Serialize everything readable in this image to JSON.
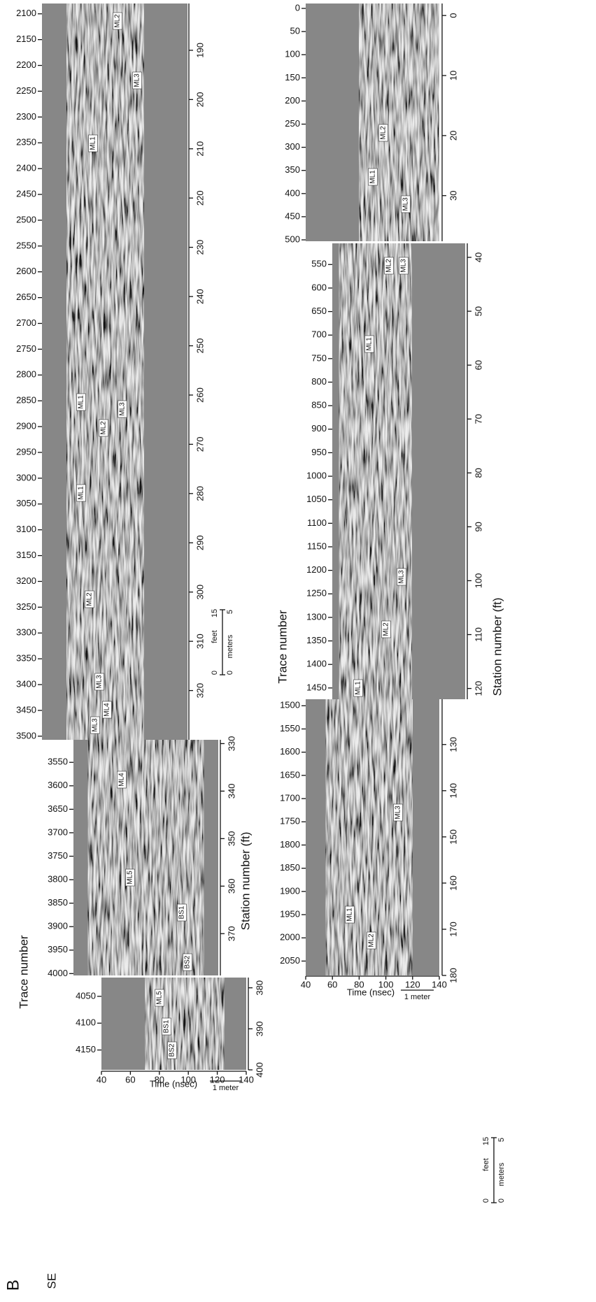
{
  "chart_data": [
    {
      "type": "radargram",
      "panel_label": "B",
      "direction": "SE",
      "ylabel": "Trace number",
      "y2label": "Station number (ft)",
      "xlabel": "Time (nsec)",
      "xlim": [
        40,
        140
      ],
      "xticks": [
        40,
        60,
        80,
        100,
        120,
        140
      ],
      "panels": [
        {
          "ylim": [
            2080,
            3507
          ],
          "yticks": [
            2100,
            2150,
            2200,
            2250,
            2300,
            2350,
            2400,
            2450,
            2500,
            2550,
            2600,
            2650,
            2700,
            2750,
            2800,
            2850,
            2900,
            2950,
            3000,
            3050,
            3100,
            3150,
            3200,
            3250,
            3300,
            3350,
            3400,
            3450,
            3500
          ],
          "y2lim": [
            180.5,
            330
          ],
          "y2ticks": [
            190,
            200,
            210,
            220,
            230,
            240,
            250,
            260,
            270,
            280,
            290,
            300,
            310,
            320
          ]
        },
        {
          "ylim": [
            3502,
            4004
          ],
          "yticks": [
            3550,
            3600,
            3650,
            3700,
            3750,
            3800,
            3850,
            3900,
            3950,
            4000
          ],
          "y2lim": [
            329.2,
            378.8
          ],
          "y2ticks": [
            330,
            340,
            350,
            360,
            370
          ]
        },
        {
          "ylim": [
            4015,
            4187
          ],
          "yticks": [
            4050,
            4100,
            4150
          ],
          "y2lim": [
            377.5,
            400
          ],
          "y2ticks": [
            380,
            390,
            400
          ]
        }
      ],
      "annotations": [
        "ML2",
        "ML3",
        "ML1",
        "ML1",
        "ML2",
        "ML3",
        "ML1",
        "ML2",
        "ML3",
        "ML4",
        "ML3",
        "ML4",
        "ML5",
        "BS1",
        "BS2",
        "ML5",
        "BS1",
        "BS2"
      ],
      "scale_bar": {
        "feet_label": "feet",
        "meters_label": "meters",
        "feet_ticks": [
          0,
          15
        ],
        "meters_ticks": [
          0,
          5
        ],
        "time_label": "1 meter"
      }
    },
    {
      "type": "radargram",
      "ylabel": "Trace number",
      "y2label": "Station number (ft)",
      "xlabel": "Time (nsec)",
      "xlim": [
        40,
        140
      ],
      "xticks": [
        40,
        60,
        80,
        100,
        120,
        140
      ],
      "panels": [
        {
          "ylim": [
            -10.6,
            503
          ],
          "yticks": [
            0,
            50,
            100,
            150,
            200,
            250,
            300,
            350,
            400,
            450,
            500
          ],
          "y2lim": [
            -2,
            37.6
          ],
          "y2ticks": [
            0,
            10,
            20,
            30
          ]
        },
        {
          "ylim": [
            505,
            1474
          ],
          "yticks": [
            550,
            600,
            650,
            700,
            750,
            800,
            850,
            900,
            950,
            1000,
            1050,
            1100,
            1150,
            1200,
            1250,
            1300,
            1350,
            1400,
            1450
          ],
          "y2lim": [
            37.4,
            122
          ],
          "y2ticks": [
            40,
            50,
            60,
            70,
            80,
            90,
            100,
            110,
            120
          ]
        },
        {
          "ylim": [
            1486,
            2081
          ],
          "yticks": [
            1500,
            1550,
            1600,
            1650,
            1700,
            1750,
            1800,
            1850,
            1900,
            1950,
            2000,
            2050
          ],
          "y2lim": [
            120.2,
            180
          ],
          "y2ticks": [
            130,
            140,
            150,
            160,
            170,
            180
          ]
        }
      ],
      "annotations": [
        "ML2",
        "ML1",
        "ML3",
        "ML2",
        "ML3",
        "ML1",
        "ML3",
        "ML2",
        "ML1",
        "ML3",
        "ML1",
        "ML2"
      ],
      "scale_bar": {
        "feet_label": "feet",
        "meters_label": "meters",
        "feet_ticks": [
          0,
          15
        ],
        "meters_ticks": [
          0,
          5
        ],
        "time_label": "1 meter"
      }
    }
  ]
}
